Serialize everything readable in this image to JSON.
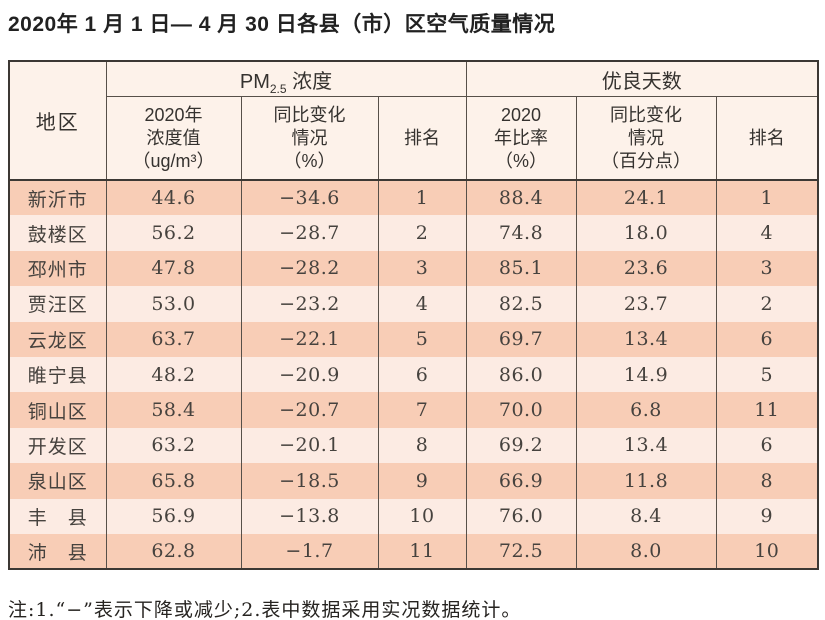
{
  "title": "2020年 1 月 1 日— 4 月 30 日各县（市）区空气质量情况",
  "table": {
    "headers": {
      "region": "地区",
      "pm_group": {
        "prefix": "PM",
        "sub": "2.5",
        "suffix": " 浓度"
      },
      "good_days_group": "优良天数",
      "pm_value_lines": [
        "2020年",
        "浓度值",
        "（ug/m³）"
      ],
      "pm_change_lines": [
        "同比变化",
        "情况",
        "（%）"
      ],
      "pm_rank": "排名",
      "ratio_lines": [
        "2020",
        "年比率",
        "（%）"
      ],
      "days_change_lines": [
        "同比变化",
        "情况",
        "（百分点）"
      ],
      "days_rank": "排名"
    },
    "rows": [
      {
        "region": "新沂市",
        "pm25_value": "44.6",
        "pm25_change": "−34.6",
        "pm25_rank": "1",
        "ratio": "88.4",
        "days_change": "24.1",
        "days_rank": "1"
      },
      {
        "region": "鼓楼区",
        "pm25_value": "56.2",
        "pm25_change": "−28.7",
        "pm25_rank": "2",
        "ratio": "74.8",
        "days_change": "18.0",
        "days_rank": "4"
      },
      {
        "region": "邳州市",
        "pm25_value": "47.8",
        "pm25_change": "−28.2",
        "pm25_rank": "3",
        "ratio": "85.1",
        "days_change": "23.6",
        "days_rank": "3"
      },
      {
        "region": "贾汪区",
        "pm25_value": "53.0",
        "pm25_change": "−23.2",
        "pm25_rank": "4",
        "ratio": "82.5",
        "days_change": "23.7",
        "days_rank": "2"
      },
      {
        "region": "云龙区",
        "pm25_value": "63.7",
        "pm25_change": "−22.1",
        "pm25_rank": "5",
        "ratio": "69.7",
        "days_change": "13.4",
        "days_rank": "6"
      },
      {
        "region": "睢宁县",
        "pm25_value": "48.2",
        "pm25_change": "−20.9",
        "pm25_rank": "6",
        "ratio": "86.0",
        "days_change": "14.9",
        "days_rank": "5"
      },
      {
        "region": "铜山区",
        "pm25_value": "58.4",
        "pm25_change": "−20.7",
        "pm25_rank": "7",
        "ratio": "70.0",
        "days_change": "6.8",
        "days_rank": "11"
      },
      {
        "region": "开发区",
        "pm25_value": "63.2",
        "pm25_change": "−20.1",
        "pm25_rank": "8",
        "ratio": "69.2",
        "days_change": "13.4",
        "days_rank": "6"
      },
      {
        "region": "泉山区",
        "pm25_value": "65.8",
        "pm25_change": "−18.5",
        "pm25_rank": "9",
        "ratio": "66.9",
        "days_change": "11.8",
        "days_rank": "8"
      },
      {
        "region": "丰　县",
        "pm25_value": "56.9",
        "pm25_change": "−13.8",
        "pm25_rank": "10",
        "ratio": "76.0",
        "days_change": "8.4",
        "days_rank": "9"
      },
      {
        "region": "沛　县",
        "pm25_value": "62.8",
        "pm25_change": "−1.7",
        "pm25_rank": "11",
        "ratio": "72.5",
        "days_change": "8.0",
        "days_rank": "10"
      }
    ]
  },
  "note": "注:1.“−”表示下降或减少;2.表中数据采用实况数据统计。",
  "colors": {
    "row_odd": "#f8cdb6",
    "row_even": "#fcebe3",
    "header_bg": "#fdf2ea",
    "border_dark": "#3c3834",
    "border_inner": "#575049"
  }
}
